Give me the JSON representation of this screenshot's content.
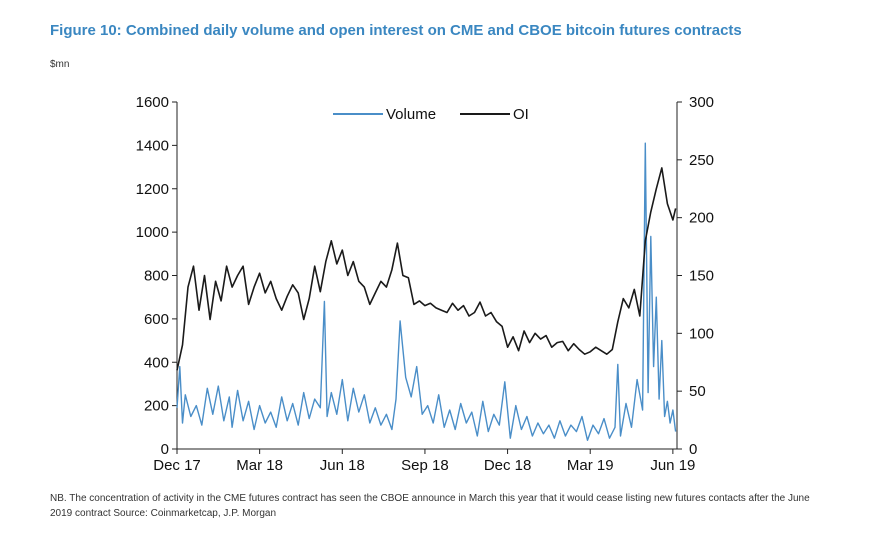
{
  "figure": {
    "title": "Figure 10: Combined daily volume and open interest on CME and CBOE bitcoin futures contracts",
    "unit_label": "$mn",
    "note": "NB. The concentration of activity in the CME futures contract has seen the CBOE announce in March this year that it would cease listing new futures contacts after the June 2019 contract Source: Coinmarketcap, J.P. Morgan"
  },
  "chart_data": {
    "type": "line",
    "legend_position": "top-center",
    "grid": false,
    "x_ticks": [
      "Dec 17",
      "Mar 18",
      "Jun 18",
      "Sep 18",
      "Dec 18",
      "Mar 19",
      "Jun 19"
    ],
    "x_months": [
      0,
      3,
      6,
      9,
      12,
      15,
      18
    ],
    "xlim_months": [
      0,
      18.15
    ],
    "y_left": {
      "ticks": [
        0,
        200,
        400,
        600,
        800,
        1000,
        1200,
        1400,
        1600
      ],
      "lim": [
        0,
        1600
      ]
    },
    "y_right": {
      "ticks": [
        0,
        50,
        100,
        150,
        200,
        250,
        300
      ],
      "lim": [
        0,
        300
      ]
    },
    "series": [
      {
        "name": "Volume",
        "axis": "left",
        "color": "#4a8ec8",
        "x_months": [
          0,
          0.1,
          0.2,
          0.3,
          0.5,
          0.7,
          0.9,
          1.1,
          1.3,
          1.5,
          1.7,
          1.9,
          2.0,
          2.2,
          2.4,
          2.6,
          2.8,
          3.0,
          3.2,
          3.4,
          3.6,
          3.8,
          4.0,
          4.2,
          4.4,
          4.6,
          4.8,
          5.0,
          5.2,
          5.35,
          5.45,
          5.6,
          5.8,
          6.0,
          6.2,
          6.4,
          6.6,
          6.8,
          7.0,
          7.2,
          7.4,
          7.6,
          7.8,
          7.95,
          8.1,
          8.3,
          8.5,
          8.7,
          8.9,
          9.1,
          9.3,
          9.5,
          9.7,
          9.9,
          10.1,
          10.3,
          10.5,
          10.7,
          10.9,
          11.1,
          11.3,
          11.5,
          11.7,
          11.9,
          12.1,
          12.3,
          12.5,
          12.7,
          12.9,
          13.1,
          13.3,
          13.5,
          13.7,
          13.9,
          14.1,
          14.3,
          14.5,
          14.7,
          14.9,
          15.1,
          15.3,
          15.5,
          15.7,
          15.9,
          16.0,
          16.1,
          16.3,
          16.5,
          16.7,
          16.9,
          17.0,
          17.1,
          17.2,
          17.3,
          17.4,
          17.5,
          17.6,
          17.7,
          17.8,
          17.9,
          18.0,
          18.1
        ],
        "values": [
          190,
          380,
          120,
          250,
          150,
          200,
          110,
          280,
          160,
          290,
          130,
          240,
          100,
          270,
          130,
          220,
          90,
          200,
          120,
          170,
          100,
          240,
          130,
          210,
          110,
          260,
          140,
          230,
          190,
          680,
          150,
          260,
          160,
          320,
          130,
          280,
          170,
          250,
          120,
          190,
          110,
          160,
          90,
          230,
          590,
          330,
          240,
          380,
          160,
          200,
          120,
          250,
          100,
          180,
          90,
          210,
          120,
          170,
          60,
          220,
          80,
          160,
          110,
          310,
          50,
          200,
          90,
          150,
          60,
          120,
          70,
          110,
          50,
          130,
          60,
          110,
          80,
          150,
          40,
          110,
          70,
          140,
          50,
          100,
          390,
          60,
          210,
          100,
          320,
          180,
          1410,
          260,
          980,
          380,
          700,
          230,
          500,
          150,
          220,
          120,
          180,
          80
        ]
      },
      {
        "name": "OI",
        "axis": "right",
        "color": "#1a1a1a",
        "x_months": [
          0,
          0.2,
          0.4,
          0.6,
          0.8,
          1.0,
          1.2,
          1.4,
          1.6,
          1.8,
          2.0,
          2.2,
          2.4,
          2.6,
          2.8,
          3.0,
          3.2,
          3.4,
          3.6,
          3.8,
          4.0,
          4.2,
          4.4,
          4.6,
          4.8,
          5.0,
          5.2,
          5.4,
          5.6,
          5.8,
          6.0,
          6.2,
          6.4,
          6.6,
          6.8,
          7.0,
          7.2,
          7.4,
          7.6,
          7.8,
          8.0,
          8.2,
          8.4,
          8.6,
          8.8,
          9.0,
          9.2,
          9.4,
          9.6,
          9.8,
          10.0,
          10.2,
          10.4,
          10.6,
          10.8,
          11.0,
          11.2,
          11.4,
          11.6,
          11.8,
          12.0,
          12.2,
          12.4,
          12.6,
          12.8,
          13.0,
          13.2,
          13.4,
          13.6,
          13.8,
          14.0,
          14.2,
          14.4,
          14.6,
          14.8,
          15.0,
          15.2,
          15.4,
          15.6,
          15.8,
          16.0,
          16.2,
          16.4,
          16.6,
          16.8,
          17.0,
          17.2,
          17.4,
          17.6,
          17.8,
          18.0,
          18.1
        ],
        "values": [
          68,
          90,
          140,
          158,
          120,
          150,
          112,
          145,
          128,
          158,
          140,
          150,
          158,
          125,
          140,
          152,
          135,
          145,
          130,
          120,
          132,
          142,
          135,
          112,
          130,
          158,
          136,
          162,
          180,
          160,
          172,
          150,
          162,
          145,
          140,
          125,
          135,
          145,
          140,
          155,
          178,
          150,
          148,
          125,
          128,
          124,
          126,
          122,
          120,
          118,
          126,
          120,
          124,
          115,
          118,
          127,
          115,
          118,
          110,
          106,
          88,
          97,
          85,
          102,
          92,
          100,
          95,
          98,
          88,
          92,
          93,
          85,
          91,
          86,
          82,
          84,
          88,
          85,
          82,
          86,
          110,
          130,
          122,
          138,
          115,
          180,
          205,
          225,
          243,
          212,
          198,
          208
        ]
      }
    ]
  }
}
